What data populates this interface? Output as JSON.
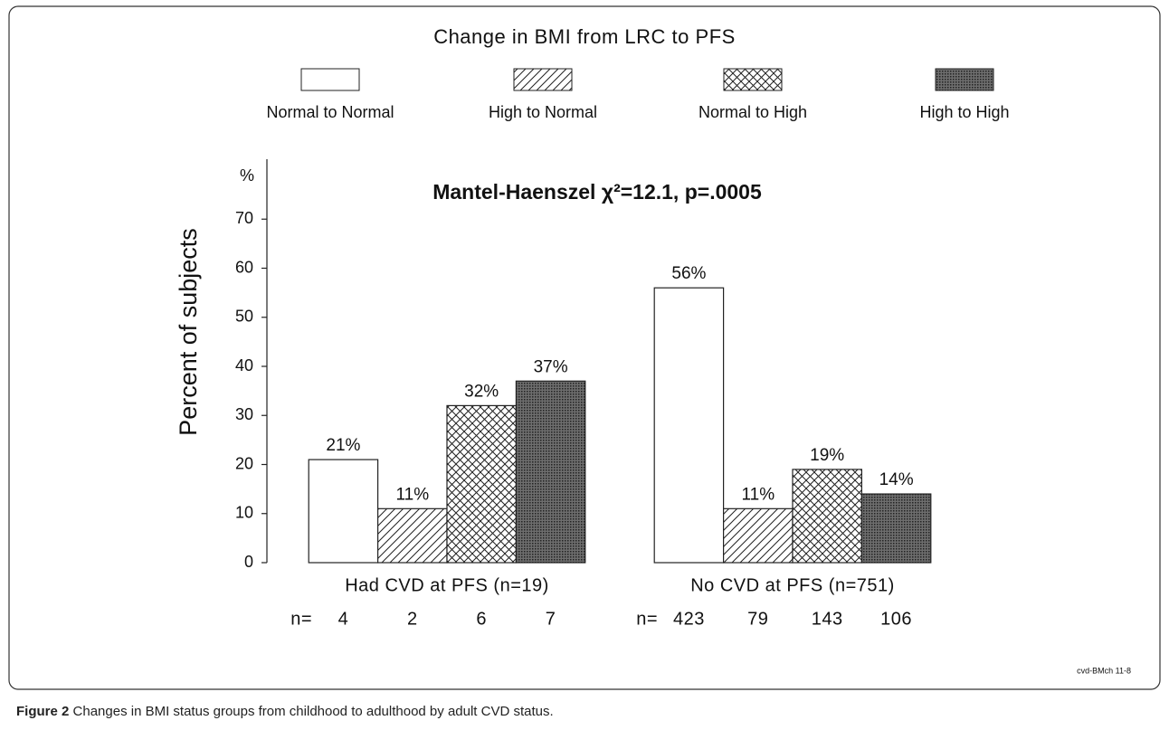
{
  "chart_data": {
    "type": "bar",
    "title": "Change in BMI from LRC to PFS",
    "annotation": "Mantel-Haenszel χ²=12.1, p=.0005",
    "ylabel": "Percent of subjects",
    "yunit": "%",
    "footer": "cvd-BMch 11-8",
    "categories": [
      "Had CVD at PFS (n=19)",
      "No CVD at PFS (n=751)"
    ],
    "n_label": "n=",
    "series": [
      {
        "name": "Normal to Normal",
        "color": "#ffffff",
        "pattern": "none",
        "values": [
          21,
          56
        ],
        "value_labels": [
          "21%",
          "56%"
        ],
        "n": [
          4,
          423
        ]
      },
      {
        "name": "High to Normal",
        "color": "#ffffff",
        "pattern": "diagonal",
        "values": [
          11,
          11
        ],
        "value_labels": [
          "11%",
          "11%"
        ],
        "n": [
          2,
          79
        ]
      },
      {
        "name": "Normal to High",
        "color": "#ffffff",
        "pattern": "cross",
        "values": [
          32,
          19
        ],
        "value_labels": [
          "32%",
          "19%"
        ],
        "n": [
          6,
          143
        ]
      },
      {
        "name": "High to High",
        "color": "#6e6e6e",
        "pattern": "dots",
        "values": [
          37,
          14
        ],
        "value_labels": [
          "37%",
          "14%"
        ],
        "n": [
          7,
          106
        ]
      }
    ],
    "ylim": [
      0,
      80
    ],
    "yticks": [
      0,
      10,
      20,
      30,
      40,
      50,
      60,
      70
    ]
  },
  "caption": {
    "label": "Figure 2",
    "text": "Changes in BMI status groups from childhood to adulthood by adult CVD status."
  }
}
